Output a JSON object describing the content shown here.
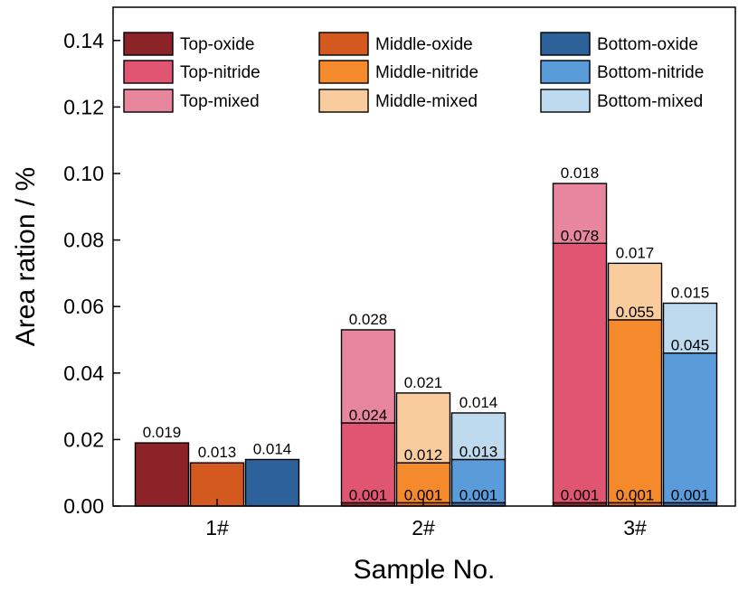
{
  "chart_data": {
    "type": "bar",
    "stacked": true,
    "grouped": true,
    "categories": [
      "1#",
      "2#",
      "3#"
    ],
    "xlabel": "Sample No.",
    "ylabel": "Area ration / %",
    "ylim": [
      0,
      0.15
    ],
    "yticks": [
      "0.00",
      "0.02",
      "0.04",
      "0.06",
      "0.08",
      "0.10",
      "0.12",
      "0.14"
    ],
    "grid": false,
    "legend_position": "top",
    "groups": [
      "Top",
      "Middle",
      "Bottom"
    ],
    "layers": [
      "oxide",
      "nitride",
      "mixed"
    ],
    "series": [
      {
        "name": "Top-oxide",
        "group": "Top",
        "layer": "oxide",
        "color": "#8B2328",
        "values": [
          0.019,
          0.001,
          0.001
        ]
      },
      {
        "name": "Top-nitride",
        "group": "Top",
        "layer": "nitride",
        "color": "#E05572",
        "values": [
          0,
          0.024,
          0.078
        ]
      },
      {
        "name": "Top-mixed",
        "group": "Top",
        "layer": "mixed",
        "color": "#E8869D",
        "values": [
          0,
          0.028,
          0.018
        ]
      },
      {
        "name": "Middle-oxide",
        "group": "Middle",
        "layer": "oxide",
        "color": "#D4591F",
        "values": [
          0.013,
          0.001,
          0.001
        ]
      },
      {
        "name": "Middle-nitride",
        "group": "Middle",
        "layer": "nitride",
        "color": "#F58A2D",
        "values": [
          0,
          0.012,
          0.055
        ]
      },
      {
        "name": "Middle-mixed",
        "group": "Middle",
        "layer": "mixed",
        "color": "#F9CC9E",
        "values": [
          0,
          0.021,
          0.017
        ]
      },
      {
        "name": "Bottom-oxide",
        "group": "Bottom",
        "layer": "oxide",
        "color": "#2D6199",
        "values": [
          0.014,
          0.001,
          0.001
        ]
      },
      {
        "name": "Bottom-nitride",
        "group": "Bottom",
        "layer": "nitride",
        "color": "#5A9CDA",
        "values": [
          0,
          0.013,
          0.045
        ]
      },
      {
        "name": "Bottom-mixed",
        "group": "Bottom",
        "layer": "mixed",
        "color": "#BDDAEE",
        "values": [
          0,
          0.014,
          0.015
        ]
      }
    ],
    "data_labels": {
      "Top": [
        [
          "0.019"
        ],
        [
          "0.001",
          "0.024",
          "0.028"
        ],
        [
          "0.001",
          "0.078",
          "0.018"
        ]
      ],
      "Middle": [
        [
          "0.013"
        ],
        [
          "0.001",
          "0.012",
          "0.021"
        ],
        [
          "0.001",
          "0.055",
          "0.017"
        ]
      ],
      "Bottom": [
        [
          "0.014"
        ],
        [
          "0.001",
          "0.013",
          "0.014"
        ],
        [
          "0.001",
          "0.045",
          "0.015"
        ]
      ]
    }
  }
}
